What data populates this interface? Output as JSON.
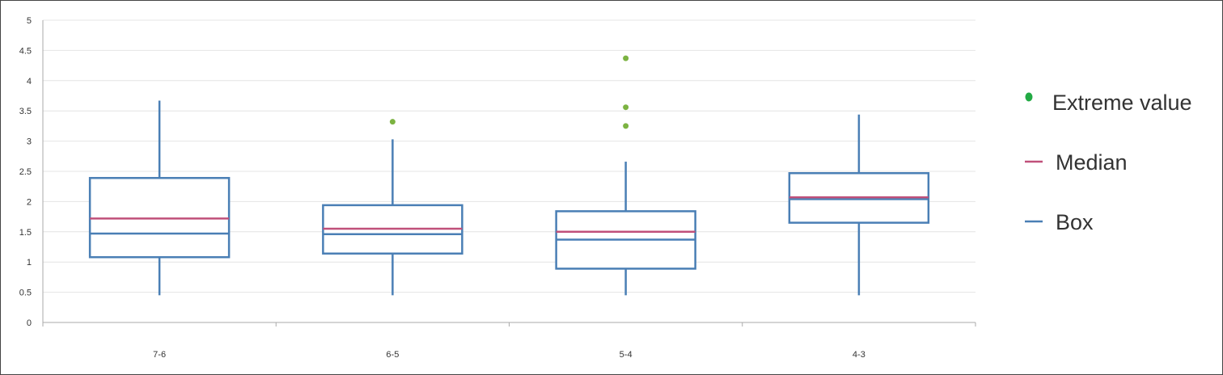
{
  "chart_data": {
    "type": "box",
    "categories": [
      "7-6",
      "6-5",
      "5-4",
      "4-3"
    ],
    "y_ticks": [
      "0",
      "0.5",
      "1",
      "1.5",
      "2",
      "2.5",
      "3",
      "3.5",
      "4",
      "4.5",
      "5"
    ],
    "ylim": [
      0,
      5
    ],
    "grid": true,
    "legend_position": "right",
    "boxes": [
      {
        "category": "7-6",
        "whisker_low": 0.45,
        "q1": 1.08,
        "mid_line": 1.47,
        "median": 1.72,
        "q3": 2.39,
        "whisker_high": 3.67,
        "outliers": []
      },
      {
        "category": "6-5",
        "whisker_low": 0.45,
        "q1": 1.14,
        "mid_line": 1.46,
        "median": 1.55,
        "q3": 1.94,
        "whisker_high": 3.03,
        "outliers": [
          3.32
        ]
      },
      {
        "category": "5-4",
        "whisker_low": 0.45,
        "q1": 0.89,
        "mid_line": 1.37,
        "median": 1.5,
        "q3": 1.84,
        "whisker_high": 2.66,
        "outliers": [
          3.25,
          3.56,
          4.37
        ]
      },
      {
        "category": "4-3",
        "whisker_low": 0.45,
        "q1": 1.65,
        "mid_line": 2.04,
        "median": 2.07,
        "q3": 2.47,
        "whisker_high": 3.44,
        "outliers": []
      }
    ],
    "legend": [
      {
        "key": "extreme",
        "label": "Extreme value",
        "color": "#22aa44"
      },
      {
        "key": "median",
        "label": "Median",
        "color": "#c0507a"
      },
      {
        "key": "box",
        "label": "Box",
        "color": "#4a7fb5"
      }
    ],
    "colors": {
      "box": "#4a7fb5",
      "median": "#c0507a",
      "outlier": "#7cb342",
      "grid": "#e4e4e4",
      "axis": "#aaaaaa"
    }
  }
}
